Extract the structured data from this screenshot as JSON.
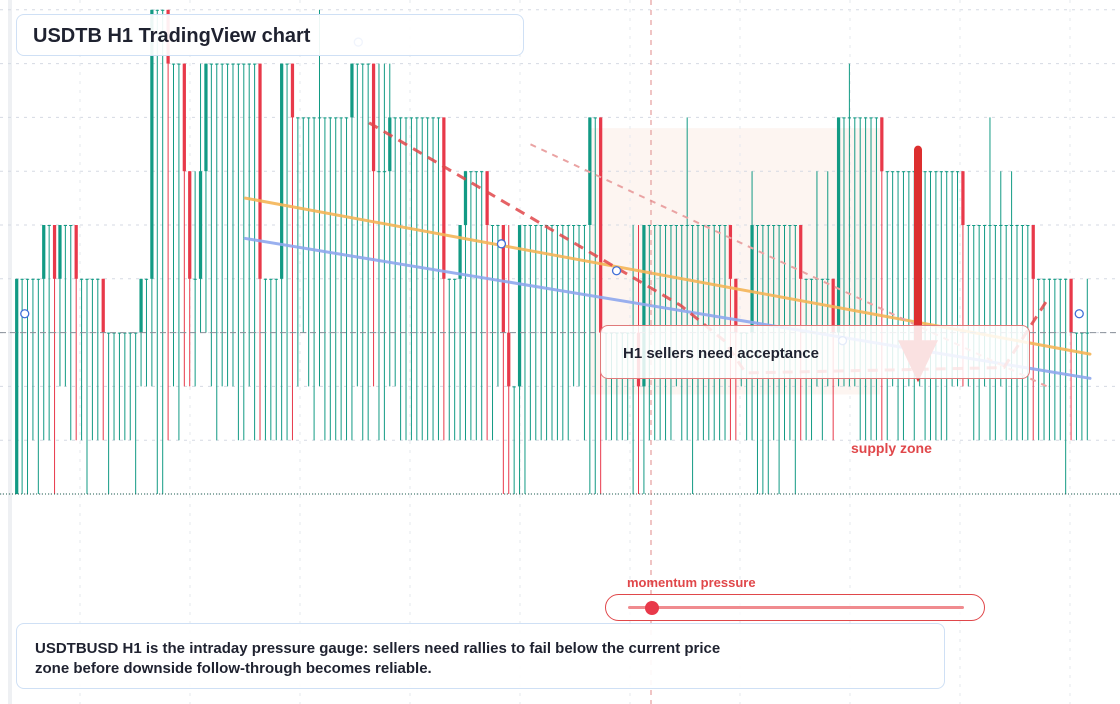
{
  "header": {
    "title": "USDTB H1 TradingView chart"
  },
  "annotations": {
    "callout": "H1 sellers need acceptance",
    "zone_label": "supply zone",
    "gauge_label": "momentum pressure"
  },
  "momentum_gauge": {
    "value": 0.07
  },
  "summary": {
    "text": "USDTBUSD H1 is the intraday pressure gauge: sellers need rallies to fail below the current price zone before downside follow-through becomes reliable."
  },
  "colors": {
    "bull": "#129a84",
    "bear": "#e8394a",
    "wick": "#1d9e88",
    "trend_upper": "#f5b557",
    "trend_lower": "#8fa8ee",
    "forecast": "#e0474a",
    "grid": "#d5dae3"
  },
  "chart_data": {
    "type": "candlestick",
    "timeframe": "H1",
    "symbol": "USDTBUSD",
    "price_levels": [
      10,
      9,
      8,
      7,
      6,
      5,
      4,
      3,
      2,
      1,
      0
    ],
    "candles": [
      [
        0,
        4,
        4,
        0
      ],
      [
        4,
        4,
        4,
        0
      ],
      [
        4,
        4,
        4,
        0
      ],
      [
        4,
        4,
        4,
        1
      ],
      [
        4,
        4,
        4,
        0
      ],
      [
        4,
        5,
        5,
        1
      ],
      [
        5,
        5,
        5,
        1
      ],
      [
        5,
        4,
        5,
        0
      ],
      [
        4,
        5,
        5,
        2
      ],
      [
        5,
        5,
        5,
        2
      ],
      [
        5,
        5,
        5,
        1
      ],
      [
        5,
        4,
        5,
        1
      ],
      [
        4,
        4,
        4,
        1
      ],
      [
        4,
        4,
        4,
        0
      ],
      [
        4,
        4,
        4,
        1
      ],
      [
        4,
        4,
        4,
        1
      ],
      [
        4,
        3,
        4,
        1
      ],
      [
        3,
        3,
        3,
        0
      ],
      [
        3,
        3,
        3,
        1
      ],
      [
        3,
        3,
        3,
        1
      ],
      [
        3,
        3,
        3,
        1
      ],
      [
        3,
        3,
        3,
        1
      ],
      [
        3,
        3,
        3,
        0
      ],
      [
        3,
        4,
        4,
        2
      ],
      [
        4,
        4,
        4,
        2
      ],
      [
        4,
        9,
        9,
        2
      ],
      [
        9,
        9,
        9,
        0
      ],
      [
        9,
        9,
        9,
        0
      ],
      [
        9,
        8,
        8,
        1
      ],
      [
        8,
        8,
        8,
        2
      ],
      [
        8,
        8,
        8,
        1
      ],
      [
        8,
        6,
        8,
        2
      ],
      [
        6,
        4,
        6,
        2
      ],
      [
        4,
        4,
        6,
        2
      ],
      [
        4,
        6,
        8,
        3
      ],
      [
        6,
        8,
        8,
        3
      ],
      [
        8,
        8,
        8,
        2
      ],
      [
        8,
        8,
        8,
        1
      ],
      [
        8,
        8,
        8,
        2
      ],
      [
        8,
        8,
        8,
        2
      ],
      [
        8,
        8,
        8,
        2
      ],
      [
        8,
        8,
        8,
        1
      ],
      [
        8,
        8,
        8,
        1
      ],
      [
        8,
        8,
        8,
        2
      ],
      [
        8,
        8,
        8,
        1
      ],
      [
        8,
        4,
        8,
        1
      ],
      [
        4,
        4,
        4,
        1
      ],
      [
        4,
        4,
        4,
        1
      ],
      [
        4,
        4,
        4,
        1
      ],
      [
        4,
        8,
        8,
        1
      ],
      [
        8,
        8,
        8,
        1
      ],
      [
        8,
        7,
        8,
        1
      ],
      [
        7,
        7,
        7,
        2
      ],
      [
        7,
        7,
        7,
        3
      ],
      [
        7,
        7,
        7,
        2
      ],
      [
        7,
        7,
        7,
        1
      ],
      [
        7,
        7,
        9,
        2
      ],
      [
        7,
        7,
        7,
        1
      ],
      [
        7,
        7,
        7,
        1
      ],
      [
        7,
        7,
        7,
        1
      ],
      [
        7,
        7,
        7,
        1
      ],
      [
        7,
        7,
        7,
        1
      ],
      [
        7,
        8,
        8,
        1
      ],
      [
        8,
        8,
        8,
        2
      ],
      [
        8,
        8,
        8,
        1
      ],
      [
        8,
        8,
        8,
        1
      ],
      [
        8,
        6,
        8,
        2
      ],
      [
        6,
        6,
        8,
        1
      ],
      [
        6,
        6,
        8,
        1
      ],
      [
        6,
        7,
        8,
        2
      ],
      [
        7,
        7,
        7,
        2
      ],
      [
        7,
        7,
        7,
        1
      ],
      [
        7,
        7,
        7,
        1
      ],
      [
        7,
        7,
        7,
        1
      ],
      [
        7,
        7,
        7,
        1
      ],
      [
        7,
        7,
        7,
        1
      ],
      [
        7,
        7,
        7,
        1
      ],
      [
        7,
        7,
        7,
        1
      ],
      [
        7,
        7,
        7,
        1
      ],
      [
        7,
        4,
        7,
        1
      ],
      [
        4,
        4,
        4,
        1
      ],
      [
        4,
        4,
        4,
        1
      ],
      [
        4,
        5,
        5,
        1
      ],
      [
        5,
        6,
        6,
        1
      ],
      [
        6,
        6,
        6,
        1
      ],
      [
        6,
        6,
        6,
        1
      ],
      [
        6,
        6,
        6,
        1
      ],
      [
        6,
        5,
        6,
        1
      ],
      [
        5,
        5,
        5,
        1
      ],
      [
        5,
        5,
        5,
        2
      ],
      [
        5,
        3,
        5,
        0
      ],
      [
        3,
        2,
        5,
        0
      ],
      [
        2,
        2,
        2,
        0
      ],
      [
        2,
        5,
        5,
        0
      ],
      [
        5,
        5,
        5,
        0
      ],
      [
        5,
        5,
        5,
        1
      ],
      [
        5,
        5,
        5,
        1
      ],
      [
        5,
        5,
        5,
        1
      ],
      [
        5,
        5,
        5,
        1
      ],
      [
        5,
        5,
        5,
        1
      ],
      [
        5,
        5,
        5,
        1
      ],
      [
        5,
        5,
        5,
        1
      ],
      [
        5,
        5,
        5,
        1
      ],
      [
        5,
        5,
        5,
        2
      ],
      [
        5,
        5,
        5,
        2
      ],
      [
        5,
        5,
        5,
        1
      ],
      [
        5,
        7,
        7,
        0
      ],
      [
        7,
        7,
        7,
        0
      ],
      [
        7,
        3,
        7,
        0
      ],
      [
        3,
        3,
        3,
        1
      ],
      [
        3,
        3,
        3,
        1
      ],
      [
        3,
        3,
        3,
        1
      ],
      [
        3,
        3,
        3,
        1
      ],
      [
        3,
        3,
        3,
        1
      ],
      [
        3,
        3,
        5,
        0
      ],
      [
        3,
        2,
        5,
        0
      ],
      [
        2,
        5,
        5,
        0
      ],
      [
        5,
        5,
        5,
        1
      ],
      [
        5,
        5,
        5,
        1
      ],
      [
        5,
        5,
        5,
        1
      ],
      [
        5,
        5,
        5,
        1
      ],
      [
        5,
        5,
        5,
        1
      ],
      [
        5,
        5,
        5,
        2
      ],
      [
        5,
        5,
        5,
        1
      ],
      [
        5,
        5,
        7,
        1
      ],
      [
        5,
        5,
        5,
        0
      ],
      [
        5,
        5,
        5,
        1
      ],
      [
        5,
        5,
        5,
        1
      ],
      [
        5,
        5,
        5,
        1
      ],
      [
        5,
        5,
        5,
        1
      ],
      [
        5,
        5,
        5,
        1
      ],
      [
        5,
        5,
        5,
        1
      ],
      [
        5,
        4,
        5,
        1
      ],
      [
        4,
        3,
        4,
        1
      ],
      [
        3,
        3,
        3,
        2
      ],
      [
        3,
        3,
        3,
        1
      ],
      [
        3,
        5,
        6,
        1
      ],
      [
        5,
        5,
        5,
        0
      ],
      [
        5,
        5,
        5,
        0
      ],
      [
        5,
        5,
        5,
        0
      ],
      [
        5,
        5,
        5,
        1
      ],
      [
        5,
        5,
        5,
        0
      ],
      [
        5,
        5,
        5,
        1
      ],
      [
        5,
        5,
        5,
        1
      ],
      [
        5,
        5,
        5,
        0
      ],
      [
        5,
        4,
        5,
        1
      ],
      [
        4,
        4,
        4,
        1
      ],
      [
        4,
        4,
        4,
        1
      ],
      [
        4,
        4,
        6,
        2
      ],
      [
        4,
        4,
        4,
        1
      ],
      [
        4,
        4,
        6,
        2
      ],
      [
        4,
        3,
        4,
        1
      ],
      [
        3,
        7,
        7,
        2
      ],
      [
        7,
        7,
        7,
        2
      ],
      [
        7,
        7,
        8,
        2
      ],
      [
        7,
        7,
        7,
        2
      ],
      [
        7,
        7,
        7,
        1
      ],
      [
        7,
        7,
        7,
        1
      ],
      [
        7,
        7,
        7,
        1
      ],
      [
        7,
        7,
        7,
        1
      ],
      [
        7,
        6,
        7,
        1
      ],
      [
        6,
        6,
        6,
        1
      ],
      [
        6,
        6,
        6,
        2
      ],
      [
        6,
        6,
        6,
        1
      ],
      [
        6,
        6,
        6,
        1
      ],
      [
        6,
        6,
        6,
        2
      ],
      [
        6,
        6,
        6,
        1
      ],
      [
        6,
        6,
        6,
        2
      ],
      [
        6,
        6,
        6,
        1
      ],
      [
        6,
        6,
        6,
        1
      ],
      [
        6,
        6,
        6,
        1
      ],
      [
        6,
        6,
        6,
        1
      ],
      [
        6,
        6,
        6,
        1
      ],
      [
        6,
        6,
        6,
        2
      ],
      [
        6,
        6,
        6,
        2
      ],
      [
        6,
        5,
        6,
        2
      ],
      [
        5,
        5,
        5,
        2
      ],
      [
        5,
        5,
        5,
        1
      ],
      [
        5,
        5,
        5,
        1
      ],
      [
        5,
        5,
        5,
        2
      ],
      [
        5,
        5,
        7,
        1
      ],
      [
        5,
        5,
        5,
        1
      ],
      [
        5,
        5,
        6,
        2
      ],
      [
        5,
        5,
        5,
        1
      ],
      [
        5,
        5,
        6,
        1
      ],
      [
        5,
        5,
        5,
        1
      ],
      [
        5,
        5,
        5,
        1
      ],
      [
        5,
        5,
        5,
        1
      ],
      [
        5,
        4,
        5,
        1
      ],
      [
        4,
        4,
        4,
        1
      ],
      [
        4,
        4,
        4,
        1
      ],
      [
        4,
        4,
        4,
        1
      ],
      [
        4,
        4,
        4,
        1
      ],
      [
        4,
        4,
        4,
        1
      ],
      [
        4,
        4,
        4,
        0
      ],
      [
        4,
        3,
        4,
        1
      ],
      [
        3,
        3,
        3,
        1
      ],
      [
        3,
        3,
        3,
        1
      ],
      [
        3,
        3,
        4,
        1
      ]
    ],
    "trendlines": [
      {
        "name": "upper",
        "points": [
          [
            0.215,
            5.5
          ],
          [
            1.0,
            2.6
          ]
        ]
      },
      {
        "name": "lower",
        "points": [
          [
            0.215,
            4.75
          ],
          [
            1.0,
            2.15
          ]
        ]
      }
    ],
    "forecast_path": [
      [
        0.33,
        6.9
      ],
      [
        0.62,
        3.5
      ],
      [
        0.66,
        2.85
      ],
      [
        0.68,
        2.25
      ],
      [
        0.92,
        2.35
      ],
      [
        0.96,
        3.6
      ]
    ],
    "drawing_nodes": [
      [
        0.01,
        3.35
      ],
      [
        0.187,
        9.4
      ],
      [
        0.32,
        8.4
      ],
      [
        0.453,
        4.65
      ],
      [
        0.56,
        4.15
      ],
      [
        0.77,
        2.85
      ],
      [
        0.99,
        3.35
      ]
    ],
    "current_price": 3.0,
    "supply_zone": {
      "from": 1.85,
      "to": 6.8
    },
    "move_arrow": {
      "from": 6.4,
      "to": 2.3
    },
    "ylim": [
      -2.4,
      10.6
    ]
  }
}
